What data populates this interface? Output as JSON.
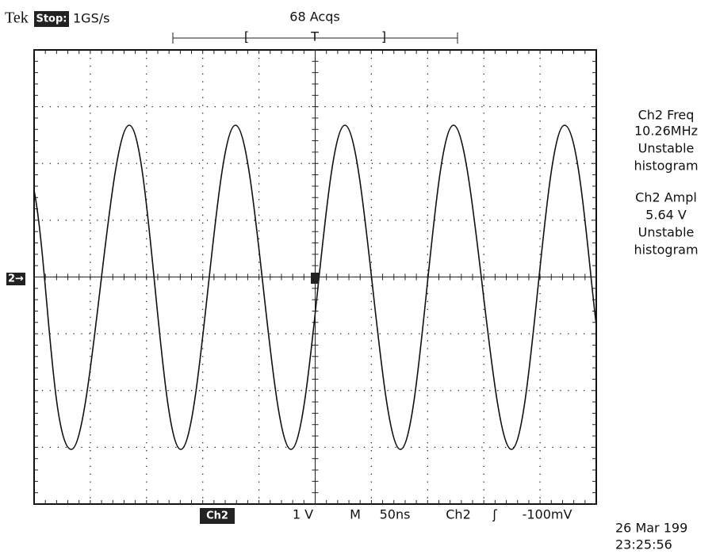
{
  "header": {
    "brand": "Tek",
    "status": "Stop:",
    "sample_rate": "1GS/s",
    "acquisitions": "68 Acqs",
    "trigger_bracket_left": "[",
    "trigger_marker": "T",
    "trigger_bracket_right": "]"
  },
  "channel_marker": "2→",
  "measurements": [
    {
      "label": "Ch2 Freq",
      "value": "10.26MHz",
      "status": "Unstable",
      "method": "histogram"
    },
    {
      "label": "Ch2 Ampl",
      "value": "5.64 V",
      "status": "Unstable",
      "method": "histogram"
    }
  ],
  "footer": {
    "channel": "Ch2",
    "volts_per_div": "1 V",
    "timebase_label": "M",
    "time_per_div": "50ns",
    "trigger_source": "Ch2",
    "trigger_slope": "ʃ",
    "trigger_level": "-100mV"
  },
  "timestamp": {
    "date": "26 Mar 199",
    "time": "23:25:56"
  }
}
